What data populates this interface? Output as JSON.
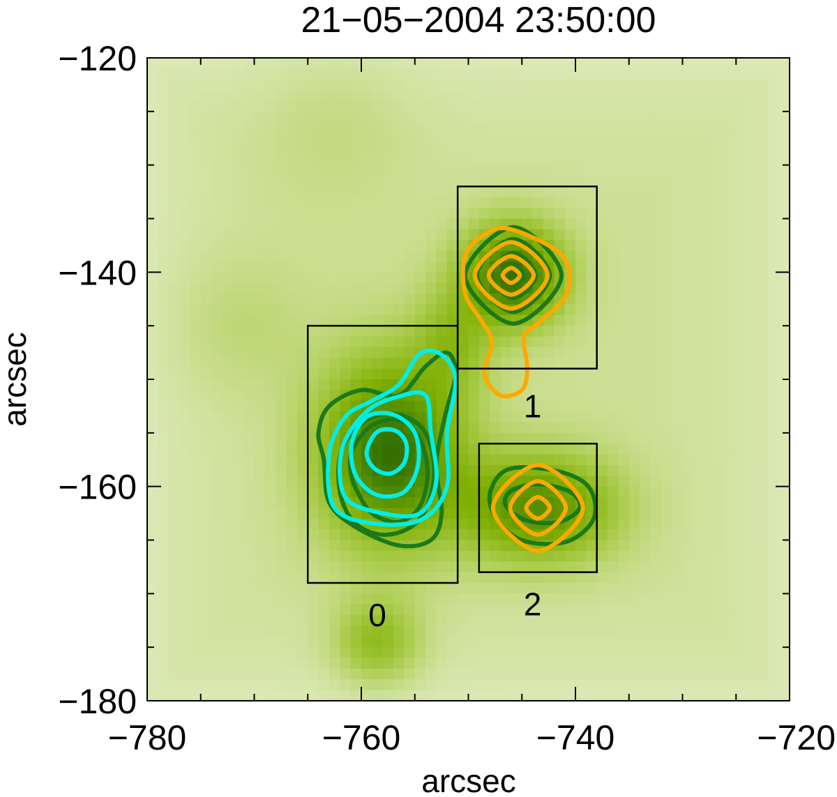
{
  "chart_data": {
    "type": "heatmap",
    "title": "21−05−2004 23:50:00",
    "xlabel": "arcsec",
    "ylabel": "arcsec",
    "xlim": [
      -780,
      -720
    ],
    "ylim": [
      -180,
      -120
    ],
    "x_ticks": [
      -780,
      -760,
      -740,
      -720
    ],
    "x_tick_labels": [
      "−780",
      "−760",
      "−740",
      "−720"
    ],
    "y_ticks": [
      -180,
      -160,
      -140,
      -120
    ],
    "y_tick_labels": [
      "−180",
      "−160",
      "−140",
      "−120"
    ],
    "minor_tick_step": 5,
    "colors": {
      "background_low": "#eef3dc",
      "background_high": "#000000",
      "map_green": "#7fb000",
      "contour_green": "#1a7a1a",
      "contour_cyan": "#00eee8",
      "contour_orange": "#ffa800",
      "box": "#000000"
    },
    "sources": [
      {
        "x": -757.3,
        "y": -156.8,
        "amp": 1.0,
        "sx": 4.6,
        "sy": 6.0
      },
      {
        "x": -745.8,
        "y": -140.3,
        "amp": 1.0,
        "sx": 3.3,
        "sy": 3.3
      },
      {
        "x": -743.5,
        "y": -162.0,
        "amp": 0.8,
        "sx": 5.0,
        "sy": 3.5
      },
      {
        "x": -758.5,
        "y": -174.5,
        "amp": 0.45,
        "sx": 2.8,
        "sy": 2.8
      },
      {
        "x": -751.5,
        "y": -146.5,
        "amp": 0.35,
        "sx": 2.5,
        "sy": 3.5
      },
      {
        "x": -771.5,
        "y": -145.0,
        "amp": 0.12,
        "sx": 4.5,
        "sy": 4.5
      },
      {
        "x": -762.5,
        "y": -126.0,
        "amp": 0.1,
        "sx": 5.0,
        "sy": 5.0
      }
    ],
    "boxes": [
      {
        "label": "0",
        "x0": -765.0,
        "x1": -751.0,
        "y0": -169.0,
        "y1": -145.0,
        "label_x": -758.5,
        "label_y": -172.0
      },
      {
        "label": "1",
        "x0": -751.0,
        "x1": -738.0,
        "y0": -149.0,
        "y1": -132.0,
        "label_x": -744.0,
        "label_y": -152.5
      },
      {
        "label": "2",
        "x0": -749.0,
        "x1": -738.0,
        "y0": -168.0,
        "y1": -156.0,
        "label_x": -744.0,
        "label_y": -171.0
      }
    ],
    "contours": [
      {
        "color": "green",
        "points": [
          [
            -760.5,
            -160.2
          ],
          [
            -759.0,
            -162.5
          ],
          [
            -756.5,
            -163.3
          ],
          [
            -754.5,
            -161.8
          ],
          [
            -753.8,
            -158.5
          ],
          [
            -754.7,
            -155.3
          ],
          [
            -756.5,
            -153.8
          ],
          [
            -759.0,
            -154.3
          ],
          [
            -760.8,
            -156.5
          ],
          [
            -761.0,
            -158.5
          ]
        ]
      },
      {
        "color": "green",
        "points": [
          [
            -762.0,
            -160.5
          ],
          [
            -760.5,
            -163.5
          ],
          [
            -757.5,
            -164.5
          ],
          [
            -754.5,
            -163.0
          ],
          [
            -753.2,
            -159.0
          ],
          [
            -754.0,
            -155.0
          ],
          [
            -756.5,
            -153.3
          ],
          [
            -759.5,
            -153.8
          ],
          [
            -761.8,
            -156.5
          ]
        ]
      },
      {
        "color": "green",
        "points": [
          [
            -763.5,
            -157.5
          ],
          [
            -763.0,
            -161.5
          ],
          [
            -760.5,
            -163.8
          ],
          [
            -756.5,
            -165.5
          ],
          [
            -753.5,
            -165.0
          ],
          [
            -752.5,
            -162.5
          ],
          [
            -753.0,
            -158.0
          ],
          [
            -752.2,
            -153.5
          ],
          [
            -751.2,
            -149.5
          ],
          [
            -752.0,
            -147.5
          ],
          [
            -754.0,
            -148.8
          ],
          [
            -756.5,
            -151.5
          ],
          [
            -760.0,
            -151.0
          ],
          [
            -763.0,
            -152.5
          ],
          [
            -764.0,
            -155.0
          ]
        ]
      },
      {
        "color": "cyan",
        "points": [
          [
            -759.5,
            -156.8
          ],
          [
            -758.8,
            -158.3
          ],
          [
            -757.3,
            -158.8
          ],
          [
            -756.0,
            -157.8
          ],
          [
            -755.8,
            -156.0
          ],
          [
            -756.8,
            -154.8
          ],
          [
            -758.5,
            -154.9
          ]
        ]
      },
      {
        "color": "cyan",
        "points": [
          [
            -760.5,
            -159.0
          ],
          [
            -758.5,
            -160.8
          ],
          [
            -756.0,
            -160.5
          ],
          [
            -754.7,
            -158.0
          ],
          [
            -755.0,
            -155.0
          ],
          [
            -757.0,
            -153.3
          ],
          [
            -759.5,
            -153.5
          ],
          [
            -760.9,
            -156.0
          ]
        ]
      },
      {
        "color": "cyan",
        "points": [
          [
            -761.5,
            -161.0
          ],
          [
            -758.0,
            -162.5
          ],
          [
            -754.5,
            -162.5
          ],
          [
            -753.0,
            -159.5
          ],
          [
            -753.5,
            -155.0
          ],
          [
            -754.0,
            -151.5
          ],
          [
            -756.5,
            -151.6
          ],
          [
            -759.5,
            -153.0
          ],
          [
            -761.8,
            -156.5
          ]
        ]
      },
      {
        "color": "cyan",
        "points": [
          [
            -762.5,
            -162.0
          ],
          [
            -758.5,
            -163.5
          ],
          [
            -754.2,
            -163.0
          ],
          [
            -752.0,
            -160.0
          ],
          [
            -752.0,
            -155.0
          ],
          [
            -751.2,
            -150.0
          ],
          [
            -752.5,
            -147.7
          ],
          [
            -754.5,
            -147.6
          ],
          [
            -756.5,
            -150.5
          ],
          [
            -759.0,
            -152.0
          ],
          [
            -761.5,
            -153.5
          ],
          [
            -763.0,
            -157.0
          ]
        ]
      },
      {
        "color": "green",
        "points": [
          [
            -745.8,
            -139.4
          ],
          [
            -744.9,
            -140.3
          ],
          [
            -745.8,
            -141.2
          ],
          [
            -746.7,
            -140.3
          ]
        ]
      },
      {
        "color": "green",
        "points": [
          [
            -745.8,
            -138.2
          ],
          [
            -743.7,
            -140.3
          ],
          [
            -745.8,
            -142.4
          ],
          [
            -747.9,
            -140.3
          ]
        ]
      },
      {
        "color": "green",
        "points": [
          [
            -745.8,
            -136.9
          ],
          [
            -742.4,
            -140.3
          ],
          [
            -745.8,
            -143.7
          ],
          [
            -749.2,
            -140.3
          ]
        ]
      },
      {
        "color": "green",
        "points": [
          [
            -745.8,
            -135.8
          ],
          [
            -741.3,
            -140.3
          ],
          [
            -745.8,
            -144.8
          ],
          [
            -750.3,
            -140.3
          ]
        ]
      },
      {
        "color": "orange",
        "points": [
          [
            -746.0,
            -139.6
          ],
          [
            -745.2,
            -140.3
          ],
          [
            -746.0,
            -141.0
          ],
          [
            -746.8,
            -140.3
          ]
        ]
      },
      {
        "color": "orange",
        "points": [
          [
            -746.0,
            -138.5
          ],
          [
            -743.9,
            -140.3
          ],
          [
            -746.0,
            -142.1
          ],
          [
            -748.1,
            -140.3
          ]
        ]
      },
      {
        "color": "orange",
        "points": [
          [
            -746.0,
            -137.2
          ],
          [
            -742.6,
            -140.3
          ],
          [
            -746.0,
            -143.4
          ],
          [
            -749.4,
            -140.3
          ]
        ]
      },
      {
        "color": "orange",
        "points": [
          [
            -746.0,
            -136.0
          ],
          [
            -741.2,
            -138.5
          ],
          [
            -740.8,
            -142.0
          ],
          [
            -743.5,
            -144.8
          ],
          [
            -744.8,
            -146.0
          ],
          [
            -744.5,
            -149.0
          ],
          [
            -745.0,
            -151.0
          ],
          [
            -747.0,
            -151.5
          ],
          [
            -748.5,
            -149.5
          ],
          [
            -747.8,
            -146.5
          ],
          [
            -748.8,
            -144.5
          ],
          [
            -750.3,
            -142.0
          ],
          [
            -750.3,
            -138.5
          ],
          [
            -748.5,
            -136.5
          ]
        ]
      },
      {
        "color": "green",
        "points": [
          [
            -746.5,
            -161.8
          ],
          [
            -744.5,
            -163.2
          ],
          [
            -741.5,
            -163.3
          ],
          [
            -739.6,
            -162.0
          ],
          [
            -740.5,
            -160.5
          ],
          [
            -743.5,
            -159.8
          ],
          [
            -746.0,
            -160.4
          ]
        ]
      },
      {
        "color": "green",
        "points": [
          [
            -748.0,
            -161.5
          ],
          [
            -745.5,
            -164.8
          ],
          [
            -741.0,
            -165.2
          ],
          [
            -738.3,
            -163.0
          ],
          [
            -738.8,
            -160.0
          ],
          [
            -742.0,
            -158.5
          ],
          [
            -746.5,
            -158.5
          ]
        ]
      },
      {
        "color": "orange",
        "points": [
          [
            -743.5,
            -161.0
          ],
          [
            -742.4,
            -162.0
          ],
          [
            -743.5,
            -163.0
          ],
          [
            -744.6,
            -162.0
          ]
        ]
      },
      {
        "color": "orange",
        "points": [
          [
            -743.5,
            -159.5
          ],
          [
            -740.9,
            -162.0
          ],
          [
            -743.5,
            -164.5
          ],
          [
            -746.1,
            -162.0
          ]
        ]
      },
      {
        "color": "orange",
        "points": [
          [
            -743.5,
            -158.0
          ],
          [
            -739.3,
            -162.0
          ],
          [
            -743.5,
            -166.0
          ],
          [
            -747.7,
            -162.0
          ]
        ]
      }
    ]
  }
}
